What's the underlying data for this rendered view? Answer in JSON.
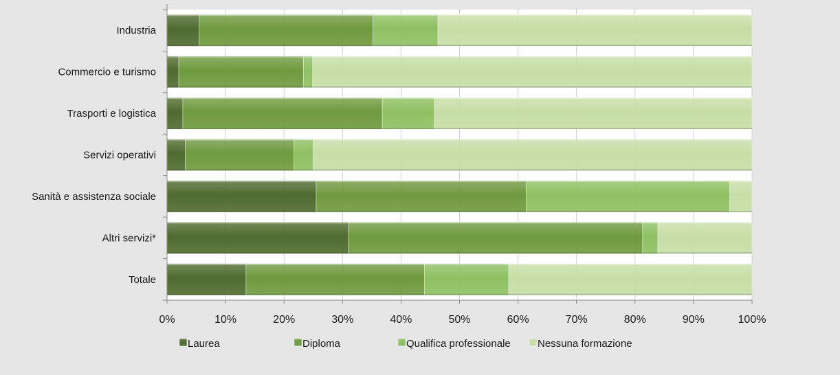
{
  "chart_data": {
    "type": "bar",
    "orientation": "horizontal",
    "stacked": true,
    "percent_stacked": true,
    "title": "",
    "xlabel": "",
    "ylabel": "",
    "xlim": [
      0,
      100
    ],
    "x_ticks": [
      "0%",
      "10%",
      "20%",
      "30%",
      "40%",
      "50%",
      "60%",
      "70%",
      "80%",
      "90%",
      "100%"
    ],
    "grid": {
      "vertical_lines": true,
      "horizontal_lines": false
    },
    "legend": {
      "position": "bottom"
    },
    "categories": [
      "Industria",
      "Commercio e  turismo",
      "Trasporti e logistica",
      "Servizi operativi",
      "Sanità e assistenza sociale",
      "Altri servizi*",
      "Totale"
    ],
    "series": [
      {
        "name": "Laurea",
        "color": "#4f6b2e",
        "values": [
          5.5,
          2.0,
          2.7,
          3.1,
          25.5,
          31.0,
          13.5
        ]
      },
      {
        "name": "Diploma",
        "color": "#6f9a3f",
        "values": [
          29.7,
          21.3,
          34.1,
          18.6,
          35.9,
          50.3,
          30.5
        ]
      },
      {
        "name": "Qualifica professionale",
        "color": "#8fc062",
        "values": [
          11.1,
          1.6,
          8.9,
          3.3,
          34.8,
          2.6,
          14.4
        ]
      },
      {
        "name": "Nessuna formazione",
        "color": "#c6dea6",
        "values": [
          53.7,
          75.1,
          54.3,
          75.0,
          3.8,
          16.1,
          41.6
        ]
      }
    ]
  }
}
